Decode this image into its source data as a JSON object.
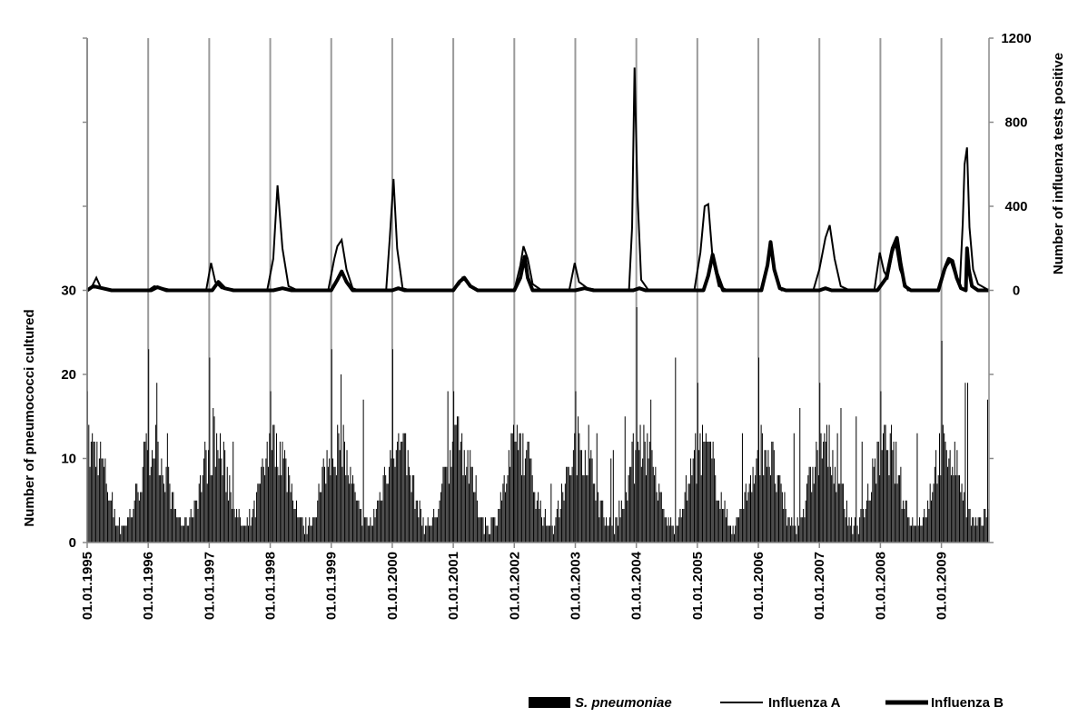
{
  "chart_data": {
    "type": "bar+line",
    "title": "",
    "x_tick_labels": [
      "01.01.1995",
      "01.01.1996",
      "01.01.1997",
      "01.01.1998",
      "01.01.1999",
      "01.01.2000",
      "01.01.2001",
      "01.01.2002",
      "01.01.2003",
      "01.01.2004",
      "01.01.2005",
      "01.01.2006",
      "01.01.2007",
      "01.01.2008",
      "01.01.2009"
    ],
    "x_range_years": [
      1995.0,
      2009.78
    ],
    "left_axis": {
      "label": "Number of pneumococci cultured",
      "ticks": [
        0,
        10,
        20,
        30
      ],
      "range": [
        0,
        60
      ]
    },
    "right_axis": {
      "label": "Number of influenza tests positive",
      "ticks": [
        0,
        400,
        800,
        1200
      ],
      "range": [
        -1200,
        1200
      ]
    },
    "grid": "vertical lines at year starts",
    "legend_position": "bottom-right",
    "series": [
      {
        "name": "S. pneumoniae",
        "kind": "bar",
        "axis": "left",
        "color": "#000000",
        "seasonal_peaks": [
          {
            "year": 1995.0,
            "peak": 18
          },
          {
            "year": 1996.0,
            "peak": 23
          },
          {
            "year": 1997.0,
            "peak": 22
          },
          {
            "year": 1998.0,
            "peak": 18
          },
          {
            "year": 1999.0,
            "peak": 23
          },
          {
            "year": 2000.0,
            "peak": 23
          },
          {
            "year": 2001.0,
            "peak": 18
          },
          {
            "year": 2002.0,
            "peak": 12
          },
          {
            "year": 2003.0,
            "peak": 18
          },
          {
            "year": 2004.0,
            "peak": 28
          },
          {
            "year": 2005.0,
            "peak": 19
          },
          {
            "year": 2006.0,
            "peak": 22
          },
          {
            "year": 2007.0,
            "peak": 19
          },
          {
            "year": 2008.0,
            "peak": 18
          },
          {
            "year": 2009.0,
            "peak": 24
          }
        ]
      },
      {
        "name": "Influenza A",
        "kind": "line",
        "axis": "right",
        "color": "#000000",
        "points": [
          [
            1995.0,
            0
          ],
          [
            1995.08,
            20
          ],
          [
            1995.15,
            60
          ],
          [
            1995.22,
            15
          ],
          [
            1995.4,
            0
          ],
          [
            1996.0,
            0
          ],
          [
            1996.1,
            20
          ],
          [
            1996.25,
            10
          ],
          [
            1996.4,
            0
          ],
          [
            1996.95,
            0
          ],
          [
            1997.03,
            130
          ],
          [
            1997.1,
            40
          ],
          [
            1997.2,
            10
          ],
          [
            1997.4,
            0
          ],
          [
            1997.95,
            0
          ],
          [
            1998.05,
            150
          ],
          [
            1998.12,
            500
          ],
          [
            1998.2,
            200
          ],
          [
            1998.3,
            20
          ],
          [
            1998.45,
            0
          ],
          [
            1998.95,
            0
          ],
          [
            1999.05,
            150
          ],
          [
            1999.1,
            210
          ],
          [
            1999.17,
            240
          ],
          [
            1999.25,
            100
          ],
          [
            1999.35,
            10
          ],
          [
            1999.45,
            0
          ],
          [
            1999.9,
            0
          ],
          [
            1999.96,
            250
          ],
          [
            2000.02,
            530
          ],
          [
            2000.08,
            200
          ],
          [
            2000.17,
            10
          ],
          [
            2000.3,
            0
          ],
          [
            2001.0,
            0
          ],
          [
            2001.1,
            30
          ],
          [
            2001.15,
            60
          ],
          [
            2001.25,
            30
          ],
          [
            2001.4,
            0
          ],
          [
            2002.0,
            0
          ],
          [
            2002.1,
            120
          ],
          [
            2002.15,
            210
          ],
          [
            2002.22,
            150
          ],
          [
            2002.3,
            30
          ],
          [
            2002.45,
            0
          ],
          [
            2002.9,
            0
          ],
          [
            2002.99,
            130
          ],
          [
            2003.06,
            40
          ],
          [
            2003.2,
            10
          ],
          [
            2003.4,
            0
          ],
          [
            2003.88,
            0
          ],
          [
            2003.93,
            300
          ],
          [
            2003.97,
            1060
          ],
          [
            2004.02,
            450
          ],
          [
            2004.08,
            50
          ],
          [
            2004.2,
            0
          ],
          [
            2004.95,
            0
          ],
          [
            2005.05,
            180
          ],
          [
            2005.12,
            400
          ],
          [
            2005.18,
            410
          ],
          [
            2005.25,
            150
          ],
          [
            2005.35,
            20
          ],
          [
            2005.5,
            0
          ],
          [
            2006.05,
            0
          ],
          [
            2006.15,
            130
          ],
          [
            2006.2,
            210
          ],
          [
            2006.28,
            80
          ],
          [
            2006.38,
            0
          ],
          [
            2006.9,
            0
          ],
          [
            2007.0,
            100
          ],
          [
            2007.1,
            250
          ],
          [
            2007.17,
            310
          ],
          [
            2007.25,
            150
          ],
          [
            2007.35,
            20
          ],
          [
            2007.5,
            0
          ],
          [
            2007.9,
            0
          ],
          [
            2007.99,
            180
          ],
          [
            2008.06,
            90
          ],
          [
            2008.12,
            60
          ],
          [
            2008.2,
            180
          ],
          [
            2008.25,
            220
          ],
          [
            2008.32,
            100
          ],
          [
            2008.45,
            0
          ],
          [
            2008.95,
            0
          ],
          [
            2009.05,
            100
          ],
          [
            2009.15,
            140
          ],
          [
            2009.25,
            50
          ],
          [
            2009.3,
            20
          ],
          [
            2009.35,
            320
          ],
          [
            2009.38,
            600
          ],
          [
            2009.42,
            680
          ],
          [
            2009.46,
            300
          ],
          [
            2009.52,
            100
          ],
          [
            2009.6,
            30
          ],
          [
            2009.78,
            0
          ]
        ]
      },
      {
        "name": "Influenza B",
        "kind": "line",
        "axis": "right",
        "color": "#000000",
        "points": [
          [
            1995.0,
            0
          ],
          [
            1995.1,
            20
          ],
          [
            1995.25,
            10
          ],
          [
            1995.4,
            0
          ],
          [
            1996.05,
            0
          ],
          [
            1996.15,
            15
          ],
          [
            1996.3,
            0
          ],
          [
            1997.05,
            0
          ],
          [
            1997.15,
            40
          ],
          [
            1997.25,
            10
          ],
          [
            1997.4,
            0
          ],
          [
            1998.05,
            0
          ],
          [
            1998.2,
            10
          ],
          [
            1998.35,
            0
          ],
          [
            1999.0,
            0
          ],
          [
            1999.1,
            50
          ],
          [
            1999.17,
            90
          ],
          [
            1999.25,
            40
          ],
          [
            1999.35,
            0
          ],
          [
            2000.0,
            0
          ],
          [
            2000.1,
            10
          ],
          [
            2000.2,
            0
          ],
          [
            2001.0,
            0
          ],
          [
            2001.1,
            40
          ],
          [
            2001.18,
            60
          ],
          [
            2001.28,
            20
          ],
          [
            2001.4,
            0
          ],
          [
            2002.0,
            0
          ],
          [
            2002.1,
            60
          ],
          [
            2002.17,
            160
          ],
          [
            2002.22,
            60
          ],
          [
            2002.3,
            0
          ],
          [
            2003.0,
            0
          ],
          [
            2003.15,
            10
          ],
          [
            2003.3,
            0
          ],
          [
            2003.95,
            0
          ],
          [
            2004.05,
            10
          ],
          [
            2004.15,
            0
          ],
          [
            2005.1,
            0
          ],
          [
            2005.18,
            70
          ],
          [
            2005.25,
            170
          ],
          [
            2005.32,
            80
          ],
          [
            2005.42,
            0
          ],
          [
            2006.05,
            0
          ],
          [
            2006.15,
            120
          ],
          [
            2006.2,
            230
          ],
          [
            2006.26,
            100
          ],
          [
            2006.35,
            10
          ],
          [
            2006.45,
            0
          ],
          [
            2007.0,
            0
          ],
          [
            2007.1,
            10
          ],
          [
            2007.2,
            0
          ],
          [
            2007.95,
            0
          ],
          [
            2008.1,
            60
          ],
          [
            2008.2,
            200
          ],
          [
            2008.27,
            250
          ],
          [
            2008.33,
            130
          ],
          [
            2008.4,
            20
          ],
          [
            2008.5,
            0
          ],
          [
            2008.95,
            0
          ],
          [
            2009.05,
            100
          ],
          [
            2009.12,
            150
          ],
          [
            2009.18,
            140
          ],
          [
            2009.25,
            60
          ],
          [
            2009.32,
            10
          ],
          [
            2009.4,
            0
          ],
          [
            2009.42,
            200
          ],
          [
            2009.45,
            100
          ],
          [
            2009.5,
            20
          ],
          [
            2009.6,
            0
          ],
          [
            2009.78,
            0
          ]
        ]
      }
    ],
    "legend": [
      {
        "label": "S. pneumoniae",
        "style": "bar"
      },
      {
        "label": "Influenza A",
        "style": "thin-line"
      },
      {
        "label": "Influenza B",
        "style": "thick-line"
      }
    ]
  }
}
